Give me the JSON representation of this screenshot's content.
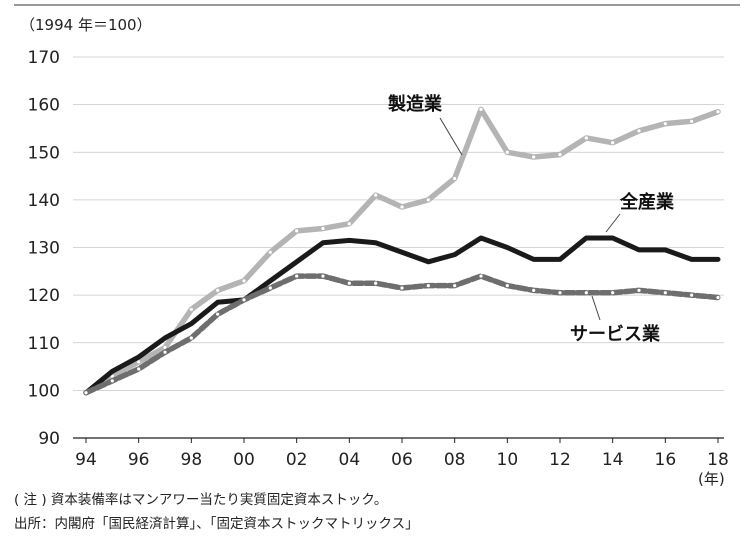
{
  "chart_data": {
    "type": "line",
    "title": "",
    "y_unit_label": "（1994 年＝100）",
    "x_unit_label": "(年)",
    "ylim": [
      90,
      170
    ],
    "y_ticks": [
      "90",
      "100",
      "110",
      "120",
      "130",
      "140",
      "150",
      "160",
      "170"
    ],
    "x_years": [
      1994,
      1995,
      1996,
      1997,
      1998,
      1999,
      2000,
      2001,
      2002,
      2003,
      2004,
      2005,
      2006,
      2007,
      2008,
      2009,
      2010,
      2011,
      2012,
      2013,
      2014,
      2015,
      2016,
      2017,
      2018
    ],
    "x_tick_labels": [
      "94",
      "96",
      "98",
      "00",
      "02",
      "04",
      "06",
      "08",
      "10",
      "12",
      "14",
      "16",
      "18"
    ],
    "grid": "horizontal",
    "series": [
      {
        "name": "製造業",
        "color": "#b4b4b4",
        "values": [
          99.5,
          103,
          106,
          109,
          117,
          121,
          123,
          129,
          133.5,
          134,
          135,
          141,
          138.5,
          140,
          144.5,
          159,
          150,
          149,
          149.5,
          153,
          152,
          154.5,
          156,
          156.5,
          158.5
        ]
      },
      {
        "name": "全産業",
        "color": "#1a1a1a",
        "values": [
          99.5,
          104,
          107,
          111,
          114,
          118.5,
          119,
          123,
          127,
          131,
          131.5,
          131,
          129,
          127,
          128.5,
          132,
          130,
          127.5,
          127.5,
          132,
          132,
          129.5,
          129.5,
          127.5,
          127.5
        ]
      },
      {
        "name": "サービス業",
        "color": "#6e6e6e",
        "values": [
          99.5,
          102,
          104.5,
          108,
          111,
          116,
          119,
          121.5,
          124,
          124,
          122.5,
          122.5,
          121.5,
          122,
          122,
          124,
          122,
          121,
          120.5,
          120.5,
          120.5,
          121,
          120.5,
          120,
          119.5
        ]
      }
    ]
  },
  "notes": {
    "note": "( 注 ) 資本装備率はマンアワー当たり実質固定資本ストック。",
    "source": "出所：内閣府「国民経済計算」、「固定資本ストックマトリックス」"
  }
}
